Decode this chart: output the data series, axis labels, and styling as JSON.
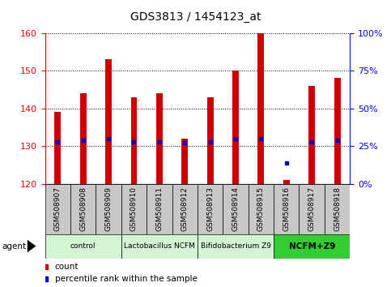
{
  "title": "GDS3813 / 1454123_at",
  "samples": [
    "GSM508907",
    "GSM508908",
    "GSM508909",
    "GSM508910",
    "GSM508911",
    "GSM508912",
    "GSM508913",
    "GSM508914",
    "GSM508915",
    "GSM508916",
    "GSM508917",
    "GSM508918"
  ],
  "counts": [
    139,
    144,
    153,
    143,
    144,
    132,
    143,
    150,
    160,
    121,
    146,
    148
  ],
  "percentile_ranks": [
    28,
    29,
    30,
    28,
    28,
    27,
    28,
    30,
    30,
    14,
    28,
    29
  ],
  "ylim_left": [
    120,
    160
  ],
  "ylim_right": [
    0,
    100
  ],
  "yticks_left": [
    120,
    130,
    140,
    150,
    160
  ],
  "yticks_right": [
    0,
    25,
    50,
    75,
    100
  ],
  "ytick_labels_right": [
    "0%",
    "25%",
    "50%",
    "75%",
    "100%"
  ],
  "groups": [
    {
      "label": "control",
      "start": 0,
      "end": 2,
      "color": "#d4f5d4"
    },
    {
      "label": "Lactobacillus NCFM",
      "start": 3,
      "end": 5,
      "color": "#d4f5d4"
    },
    {
      "label": "Bifidobacterium Z9",
      "start": 6,
      "end": 8,
      "color": "#d4f5d4"
    },
    {
      "label": "NCFM+Z9",
      "start": 9,
      "end": 11,
      "color": "#33cc33"
    }
  ],
  "bar_color": "#cc0000",
  "percentile_color": "#0000cc",
  "tick_area_color": "#c8c8c8",
  "bar_width": 0.25,
  "agent_label": "agent"
}
